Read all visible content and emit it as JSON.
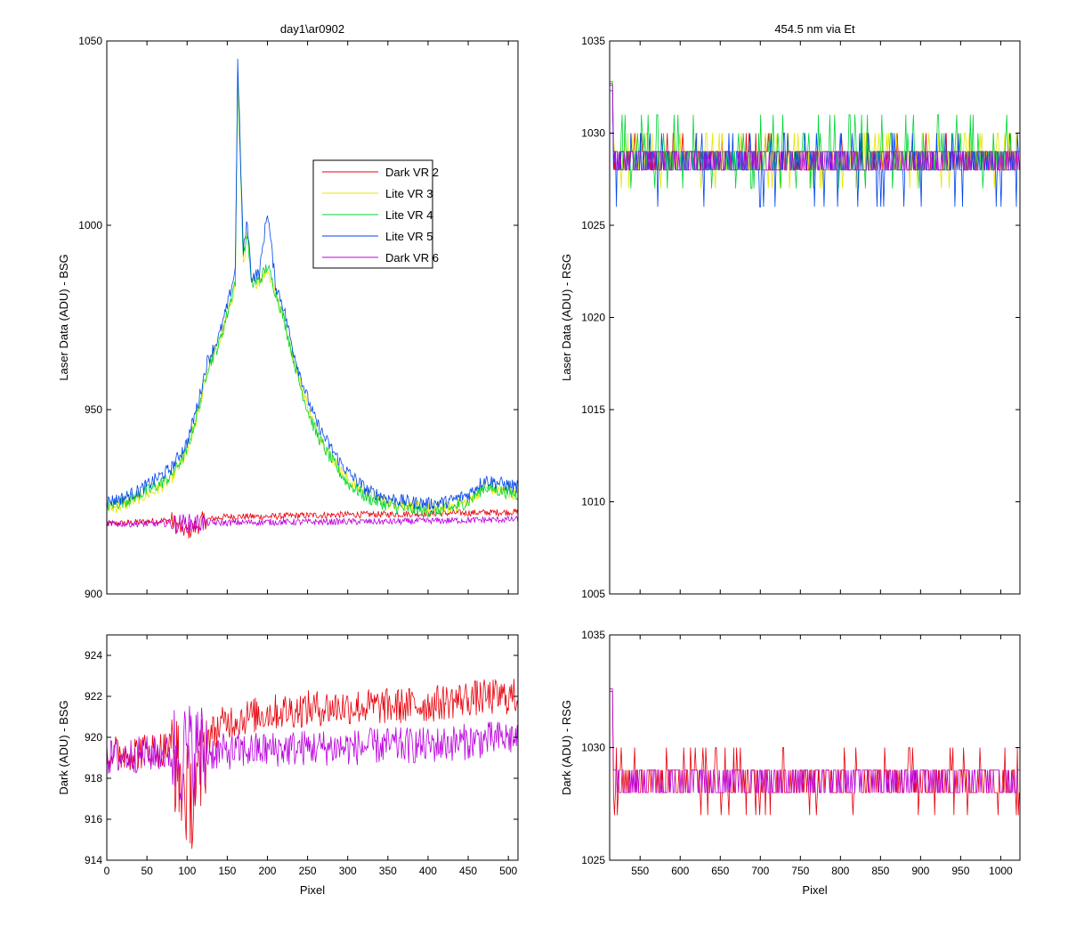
{
  "chart_data": [
    {
      "id": "top-left",
      "type": "line",
      "title": "day1\\ar0902",
      "xlabel": "",
      "ylabel": "Laser Data (ADU) - BSG",
      "xlim": [
        0,
        512
      ],
      "ylim": [
        900,
        1050
      ],
      "xticks": [
        0,
        50,
        100,
        150,
        200,
        250,
        300,
        350,
        400,
        450,
        500
      ],
      "xtick_labels_visible": false,
      "yticks": [
        900,
        950,
        1000,
        1050
      ],
      "legend": {
        "placement": "upper-middle",
        "entries": [
          "Dark VR 2",
          "Lite VR 3",
          "Lite VR 4",
          "Lite VR 5",
          "Dark VR 6"
        ]
      },
      "series": [
        {
          "name": "Dark VR 2",
          "color": "#e8000b",
          "x": [
            0,
            20,
            40,
            60,
            80,
            90,
            100,
            110,
            120,
            150,
            200,
            250,
            300,
            350,
            400,
            450,
            500,
            512
          ],
          "y": [
            919,
            919.2,
            919.5,
            919.8,
            920,
            918,
            917,
            918,
            920,
            921,
            921,
            921.3,
            921.5,
            921.6,
            921.8,
            922,
            922.2,
            922.2
          ]
        },
        {
          "name": "Lite VR 3",
          "color": "#e6e600",
          "x": [
            0,
            20,
            40,
            60,
            80,
            100,
            115,
            125,
            140,
            150,
            160,
            163,
            170,
            175,
            180,
            190,
            200,
            210,
            220,
            230,
            240,
            250,
            260,
            275,
            290,
            300,
            325,
            350,
            375,
            400,
            425,
            450,
            470,
            490,
            512
          ],
          "y": [
            923,
            924,
            926,
            928,
            931,
            938,
            950,
            961,
            968,
            975,
            984,
            1040,
            990,
            997,
            984,
            985,
            988,
            982,
            975,
            966,
            958,
            951,
            945,
            939,
            934,
            931,
            927,
            925,
            924,
            923,
            923.5,
            925,
            929,
            928,
            927
          ]
        },
        {
          "name": "Lite VR 4",
          "color": "#00d633",
          "x": [
            0,
            20,
            40,
            60,
            80,
            100,
            115,
            125,
            140,
            150,
            160,
            163,
            170,
            175,
            180,
            190,
            200,
            210,
            220,
            230,
            240,
            250,
            260,
            275,
            290,
            300,
            325,
            350,
            375,
            400,
            425,
            450,
            470,
            490,
            512
          ],
          "y": [
            924,
            925,
            927,
            929,
            932,
            939,
            951,
            961,
            968,
            976,
            985,
            1042,
            991,
            998,
            984,
            985,
            989,
            982,
            975,
            966,
            957,
            950,
            944,
            938,
            933,
            930,
            926,
            924,
            923,
            922.5,
            923,
            925,
            929,
            928,
            927
          ]
        },
        {
          "name": "Lite VR 5",
          "color": "#0044ee",
          "x": [
            0,
            20,
            40,
            60,
            80,
            100,
            115,
            125,
            140,
            150,
            160,
            163,
            170,
            175,
            180,
            190,
            200,
            210,
            220,
            230,
            240,
            250,
            260,
            275,
            290,
            300,
            325,
            350,
            375,
            400,
            425,
            450,
            470,
            490,
            512
          ],
          "y": [
            925,
            926,
            928,
            931,
            934,
            941,
            953,
            963,
            970,
            978,
            988,
            1044,
            993,
            1001,
            986,
            987,
            1004,
            984,
            978,
            968,
            960,
            953,
            947,
            941,
            936,
            933,
            928,
            926,
            925,
            924.5,
            925,
            927,
            931,
            930,
            929
          ]
        },
        {
          "name": "Dark VR 6",
          "color": "#bb00dd",
          "x": [
            0,
            50,
            100,
            150,
            200,
            250,
            300,
            350,
            400,
            450,
            500,
            512
          ],
          "y": [
            919,
            919,
            919.2,
            919.3,
            919.5,
            919.5,
            919.6,
            919.6,
            919.8,
            920,
            920.2,
            920.2
          ]
        }
      ]
    },
    {
      "id": "top-right",
      "type": "line",
      "title": "454.5 nm via Et",
      "xlabel": "",
      "ylabel": "Laser Data (ADU) - RSG",
      "xlim": [
        512,
        1024
      ],
      "ylim": [
        1005,
        1035
      ],
      "xticks": [
        550,
        600,
        650,
        700,
        750,
        800,
        850,
        900,
        950,
        1000
      ],
      "xtick_labels_visible": false,
      "yticks": [
        1005,
        1010,
        1015,
        1020,
        1025,
        1030,
        1035
      ],
      "series": [
        {
          "name": "Dark VR 2",
          "color": "#e8000b",
          "mean": 1028.7,
          "low": 1028,
          "high": 1030
        },
        {
          "name": "Lite VR 3",
          "color": "#e6e600",
          "mean": 1028.8,
          "low": 1027,
          "high": 1030
        },
        {
          "name": "Lite VR 4",
          "color": "#00d633",
          "mean": 1028.8,
          "low": 1027,
          "high": 1031
        },
        {
          "name": "Lite VR 5",
          "color": "#0044ee",
          "mean": 1028.3,
          "low": 1026,
          "high": 1030
        },
        {
          "name": "Dark VR 6",
          "color": "#bb00dd",
          "mean": 1028.6,
          "low": 1028,
          "high": 1029
        }
      ]
    },
    {
      "id": "bottom-left",
      "type": "line",
      "title": "",
      "xlabel": "Pixel",
      "ylabel": "Dark (ADU) - BSG",
      "xlim": [
        0,
        512
      ],
      "ylim": [
        914,
        925
      ],
      "xticks": [
        0,
        50,
        100,
        150,
        200,
        250,
        300,
        350,
        400,
        450,
        500
      ],
      "yticks": [
        914,
        916,
        918,
        920,
        922,
        924
      ],
      "series": [
        {
          "name": "Dark VR 2",
          "color": "#e8000b",
          "x": [
            0,
            40,
            80,
            95,
            105,
            115,
            125,
            150,
            200,
            250,
            300,
            350,
            400,
            450,
            512
          ],
          "y": [
            919.2,
            919.3,
            919.5,
            917.5,
            917,
            918,
            920,
            920.8,
            921.2,
            921.4,
            921.5,
            921.5,
            921.6,
            921.9,
            922
          ]
        },
        {
          "name": "Dark VR 6",
          "color": "#bb00dd",
          "x": [
            0,
            50,
            100,
            150,
            200,
            250,
            300,
            350,
            400,
            450,
            512
          ],
          "y": [
            919,
            919.2,
            919.2,
            919.3,
            919.4,
            919.5,
            919.5,
            919.6,
            919.6,
            919.8,
            920
          ]
        }
      ]
    },
    {
      "id": "bottom-right",
      "type": "line",
      "title": "",
      "xlabel": "Pixel",
      "ylabel": "Dark (ADU) - RSG",
      "xlim": [
        512,
        1024
      ],
      "ylim": [
        1025,
        1035
      ],
      "xticks": [
        550,
        600,
        650,
        700,
        750,
        800,
        850,
        900,
        950,
        1000
      ],
      "yticks": [
        1025,
        1030,
        1035
      ],
      "series": [
        {
          "name": "Dark VR 2",
          "color": "#e8000b",
          "mean": 1028.5,
          "low": 1027,
          "high": 1030
        },
        {
          "name": "Dark VR 6",
          "color": "#bb00dd",
          "mean": 1028.6,
          "low": 1028,
          "high": 1029
        }
      ]
    }
  ]
}
